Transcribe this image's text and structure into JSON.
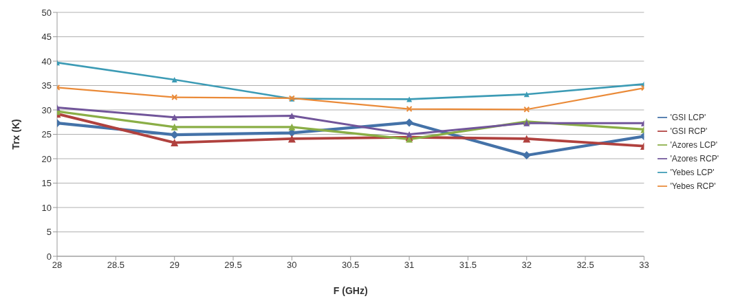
{
  "chart_data": {
    "type": "line",
    "xlabel": "F (GHz)",
    "ylabel": "Trx (K)",
    "x": [
      28,
      29,
      30,
      31,
      32,
      33
    ],
    "xlim": [
      28,
      33
    ],
    "xticks": [
      28,
      28.5,
      29,
      29.5,
      30,
      30.5,
      31,
      31.5,
      32,
      32.5,
      33
    ],
    "ylim": [
      0,
      50
    ],
    "yticks": [
      0,
      5,
      10,
      15,
      20,
      25,
      30,
      35,
      40,
      45,
      50
    ],
    "grid": "y",
    "legend": "right",
    "line_style": "solid",
    "series": [
      {
        "name": "'GSI LCP'",
        "color": "#4472a8",
        "marker": "diamond",
        "values": [
          27.3,
          24.9,
          25.3,
          27.4,
          20.7,
          24.6
        ]
      },
      {
        "name": "'GSI RCP'",
        "color": "#b0413e",
        "marker": "triangle",
        "values": [
          29.2,
          23.3,
          24.1,
          24.4,
          24.1,
          22.6
        ]
      },
      {
        "name": "'Azores LCP'",
        "color": "#8aae46",
        "marker": "triangle",
        "values": [
          29.7,
          26.5,
          26.5,
          24.0,
          27.6,
          26.0
        ]
      },
      {
        "name": "'Azores RCP'",
        "color": "#71559a",
        "marker": "triangle",
        "values": [
          30.5,
          28.5,
          28.8,
          25.0,
          27.3,
          27.3
        ]
      },
      {
        "name": "'Yebes LCP'",
        "color": "#3c9bb5",
        "marker": "triangle",
        "values": [
          39.7,
          36.2,
          32.3,
          32.2,
          33.2,
          35.3
        ]
      },
      {
        "name": "'Yebes RCP'",
        "color": "#ea8a38",
        "marker": "cross",
        "values": [
          34.6,
          32.6,
          32.4,
          30.2,
          30.1,
          34.5
        ]
      }
    ]
  }
}
